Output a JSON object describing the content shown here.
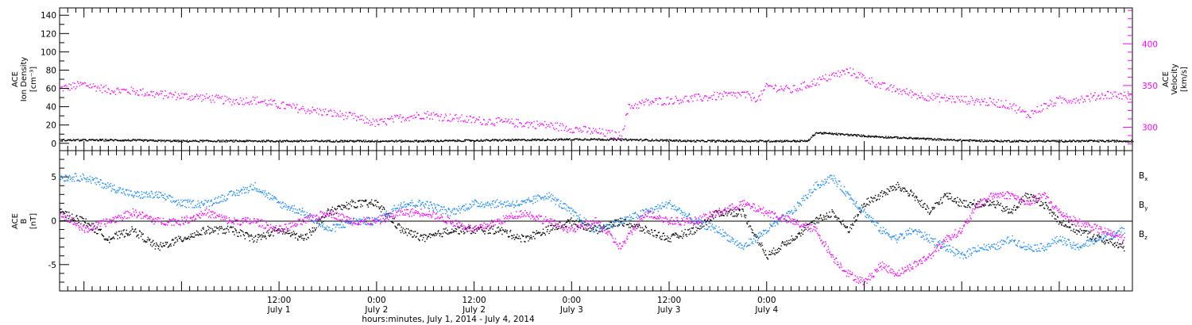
{
  "chart_data": [
    {
      "type": "scatter",
      "panel": "top",
      "ylabel_left": [
        "ACE",
        "Ion Density",
        "[cm⁻³]"
      ],
      "ylabel_right": [
        "ACE",
        "Velocity",
        "[km/s]"
      ],
      "x_range_hours": [
        -15,
        117
      ],
      "y_left": {
        "range": [
          -8,
          148
        ],
        "ticks": [
          0,
          20,
          40,
          60,
          80,
          100,
          120,
          140
        ]
      },
      "y_right": {
        "range": [
          272,
          443
        ],
        "ticks": [
          300,
          350,
          400
        ],
        "minor_step": 10
      },
      "series": [
        {
          "color": "#000000",
          "axis": "left",
          "points": [
            [
              -15,
              4
            ],
            [
              -8,
              4
            ],
            [
              0,
              3
            ],
            [
              10,
              3
            ],
            [
              20,
              3
            ],
            [
              30,
              3
            ],
            [
              40,
              4
            ],
            [
              50,
              5
            ],
            [
              58,
              4
            ],
            [
              63,
              3
            ],
            [
              70,
              3
            ],
            [
              77,
              3
            ],
            [
              78,
              12
            ],
            [
              80,
              11
            ],
            [
              85,
              8
            ],
            [
              90,
              6
            ],
            [
              95,
              4
            ],
            [
              100,
              3
            ],
            [
              110,
              3
            ],
            [
              117,
              3
            ]
          ]
        },
        {
          "color": "#ff00ff",
          "axis": "right",
          "points": [
            [
              -15,
              347
            ],
            [
              -12,
              352
            ],
            [
              -9,
              345
            ],
            [
              -6,
              344
            ],
            [
              -3,
              340
            ],
            [
              0,
              338
            ],
            [
              3,
              336
            ],
            [
              6,
              332
            ],
            [
              9,
              333
            ],
            [
              12,
              327
            ],
            [
              15,
              322
            ],
            [
              18,
              318
            ],
            [
              21,
              313
            ],
            [
              24,
              305
            ],
            [
              27,
              312
            ],
            [
              30,
              316
            ],
            [
              33,
              312
            ],
            [
              36,
              309
            ],
            [
              39,
              307
            ],
            [
              42,
              305
            ],
            [
              45,
              303
            ],
            [
              48,
              299
            ],
            [
              51,
              295
            ],
            [
              54,
              290
            ],
            [
              55,
              325
            ],
            [
              57,
              330
            ],
            [
              60,
              333
            ],
            [
              63,
              335
            ],
            [
              66,
              338
            ],
            [
              69,
              340
            ],
            [
              71,
              335
            ],
            [
              72,
              350
            ],
            [
              75,
              345
            ],
            [
              78,
              355
            ],
            [
              80,
              362
            ],
            [
              82,
              368
            ],
            [
              84,
              360
            ],
            [
              86,
              350
            ],
            [
              88,
              345
            ],
            [
              91,
              338
            ],
            [
              94,
              335
            ],
            [
              97,
              333
            ],
            [
              100,
              330
            ],
            [
              102,
              327
            ],
            [
              104,
              315
            ],
            [
              106,
              325
            ],
            [
              108,
              333
            ],
            [
              111,
              335
            ],
            [
              114,
              340
            ],
            [
              117,
              338
            ]
          ]
        }
      ]
    },
    {
      "type": "scatter",
      "panel": "bottom",
      "ylabel_left": [
        "ACE",
        "B",
        "[nT]"
      ],
      "x_range_hours": [
        -15,
        117
      ],
      "y_left": {
        "range": [
          -8,
          8
        ],
        "ticks": [
          -5,
          0,
          5
        ],
        "minor_step": 1
      },
      "series": [
        {
          "name": "Bx",
          "color": "#000000",
          "points": [
            [
              -15,
              1
            ],
            [
              -12,
              0
            ],
            [
              -9,
              -2
            ],
            [
              -6,
              -1
            ],
            [
              -3,
              -3
            ],
            [
              0,
              -2
            ],
            [
              3,
              -1
            ],
            [
              6,
              -1
            ],
            [
              9,
              -2
            ],
            [
              12,
              -1
            ],
            [
              15,
              -2
            ],
            [
              18,
              1
            ],
            [
              21,
              2
            ],
            [
              24,
              2
            ],
            [
              27,
              -1
            ],
            [
              30,
              -2
            ],
            [
              33,
              -1
            ],
            [
              36,
              -1
            ],
            [
              39,
              -1
            ],
            [
              42,
              -2
            ],
            [
              45,
              -1
            ],
            [
              48,
              0
            ],
            [
              51,
              -1
            ],
            [
              54,
              0
            ],
            [
              57,
              -1
            ],
            [
              60,
              -2
            ],
            [
              63,
              -1
            ],
            [
              66,
              1
            ],
            [
              69,
              1
            ],
            [
              72,
              -4
            ],
            [
              75,
              -2
            ],
            [
              78,
              0
            ],
            [
              80,
              1
            ],
            [
              82,
              -1
            ],
            [
              84,
              2
            ],
            [
              86,
              3
            ],
            [
              88,
              4
            ],
            [
              90,
              3
            ],
            [
              92,
              1
            ],
            [
              94,
              3
            ],
            [
              96,
              2
            ],
            [
              98,
              2
            ],
            [
              100,
              2
            ],
            [
              102,
              1
            ],
            [
              104,
              3
            ],
            [
              106,
              2
            ],
            [
              108,
              0
            ],
            [
              110,
              -1
            ],
            [
              113,
              -2
            ],
            [
              116,
              -3
            ]
          ]
        },
        {
          "name": "By",
          "color": "#1a8cff",
          "points": [
            [
              -15,
              5
            ],
            [
              -12,
              5
            ],
            [
              -9,
              4
            ],
            [
              -6,
              3
            ],
            [
              -3,
              3
            ],
            [
              0,
              2
            ],
            [
              3,
              2
            ],
            [
              6,
              3
            ],
            [
              9,
              4
            ],
            [
              12,
              2
            ],
            [
              15,
              1
            ],
            [
              18,
              -1
            ],
            [
              21,
              0
            ],
            [
              24,
              0
            ],
            [
              27,
              2
            ],
            [
              30,
              2
            ],
            [
              33,
              1
            ],
            [
              36,
              2
            ],
            [
              39,
              2
            ],
            [
              42,
              2
            ],
            [
              45,
              3
            ],
            [
              48,
              1
            ],
            [
              51,
              -1
            ],
            [
              54,
              0
            ],
            [
              57,
              1
            ],
            [
              60,
              2
            ],
            [
              63,
              0
            ],
            [
              66,
              -1
            ],
            [
              69,
              -3
            ],
            [
              72,
              -1
            ],
            [
              75,
              1
            ],
            [
              78,
              4
            ],
            [
              80,
              5
            ],
            [
              82,
              3
            ],
            [
              84,
              1
            ],
            [
              86,
              -1
            ],
            [
              88,
              -2
            ],
            [
              90,
              -1
            ],
            [
              92,
              -2
            ],
            [
              94,
              -3
            ],
            [
              96,
              -4
            ],
            [
              98,
              -3
            ],
            [
              100,
              -3
            ],
            [
              102,
              -2
            ],
            [
              104,
              -3
            ],
            [
              106,
              -3
            ],
            [
              108,
              -2
            ],
            [
              110,
              -3
            ],
            [
              113,
              -2
            ],
            [
              116,
              -1
            ]
          ]
        },
        {
          "name": "Bz",
          "color": "#ff00ff",
          "points": [
            [
              -15,
              1
            ],
            [
              -12,
              -1
            ],
            [
              -9,
              0
            ],
            [
              -6,
              1
            ],
            [
              -3,
              0
            ],
            [
              0,
              0
            ],
            [
              3,
              1
            ],
            [
              6,
              0
            ],
            [
              9,
              0
            ],
            [
              12,
              -1
            ],
            [
              15,
              0
            ],
            [
              18,
              1
            ],
            [
              21,
              0
            ],
            [
              24,
              0
            ],
            [
              27,
              1
            ],
            [
              30,
              1
            ],
            [
              33,
              0
            ],
            [
              36,
              -1
            ],
            [
              39,
              0
            ],
            [
              42,
              1
            ],
            [
              45,
              0
            ],
            [
              48,
              -1
            ],
            [
              51,
              0
            ],
            [
              54,
              -3
            ],
            [
              57,
              1
            ],
            [
              60,
              0
            ],
            [
              63,
              0
            ],
            [
              66,
              1
            ],
            [
              69,
              2
            ],
            [
              72,
              1
            ],
            [
              75,
              0
            ],
            [
              78,
              -1
            ],
            [
              80,
              -4
            ],
            [
              82,
              -6
            ],
            [
              84,
              -7
            ],
            [
              86,
              -5
            ],
            [
              88,
              -6
            ],
            [
              90,
              -5
            ],
            [
              92,
              -4
            ],
            [
              94,
              -2
            ],
            [
              96,
              -1
            ],
            [
              98,
              2
            ],
            [
              100,
              3
            ],
            [
              102,
              3
            ],
            [
              104,
              2
            ],
            [
              106,
              3
            ],
            [
              108,
              1
            ],
            [
              110,
              0
            ],
            [
              113,
              -1
            ],
            [
              116,
              -2
            ]
          ]
        }
      ]
    }
  ],
  "legend": [
    {
      "label": "B",
      "sub": "x",
      "color": "#000000"
    },
    {
      "label": "B",
      "sub": "y",
      "color": "#1a8cff"
    },
    {
      "label": "B",
      "sub": "z",
      "color": "#ff00ff"
    }
  ],
  "x_axis": {
    "ticks": [
      {
        "hour": 12,
        "time": "12:00",
        "day": "July 1"
      },
      {
        "hour": 24,
        "time": "0:00",
        "day": "July 2"
      },
      {
        "hour": 36,
        "time": "12:00",
        "day": "July 2"
      },
      {
        "hour": 48,
        "time": "0:00",
        "day": "July 3"
      },
      {
        "hour": 60,
        "time": "12:00",
        "day": "July 3"
      },
      {
        "hour": 72,
        "time": "0:00",
        "day": "July 4"
      }
    ],
    "minor_step_hours": 1,
    "title": "hours:minutes, July  1, 2014 - July  4, 2014"
  }
}
